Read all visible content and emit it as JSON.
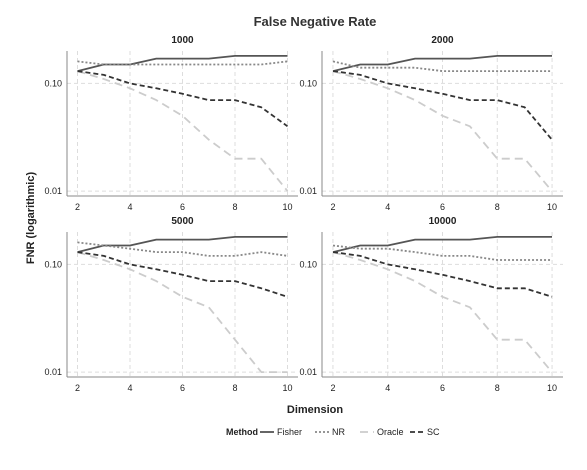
{
  "chart_data": {
    "type": "line",
    "title": "False Negative Rate",
    "xlabel": "Dimension",
    "ylabel": "FNR (logarithmic)",
    "x": [
      2,
      3,
      4,
      5,
      6,
      7,
      8,
      9,
      10
    ],
    "x_ticks": [
      2,
      4,
      6,
      8,
      10
    ],
    "y_scale": "log",
    "y_ticks": [
      0.01,
      0.1
    ],
    "y_tick_labels": [
      "0.01",
      "0.10"
    ],
    "ylim": [
      0.009,
      0.2
    ],
    "xlim": [
      1.6,
      10.4
    ],
    "grid": true,
    "legend": {
      "title": "Method",
      "position": "bottom",
      "entries": [
        "Fisher",
        "NR",
        "Oracle",
        "SC"
      ]
    },
    "series_styles": {
      "Fisher": {
        "color": "#555555",
        "dash": "solid"
      },
      "NR": {
        "color": "#888888",
        "dash": "dotted"
      },
      "Oracle": {
        "color": "#cccccc",
        "dash": "longdash"
      },
      "SC": {
        "color": "#333333",
        "dash": "dashed"
      }
    },
    "panels": [
      {
        "label": "1000",
        "series": [
          {
            "name": "Fisher",
            "values": [
              0.13,
              0.15,
              0.15,
              0.17,
              0.17,
              0.17,
              0.18,
              0.18,
              0.18
            ]
          },
          {
            "name": "NR",
            "values": [
              0.16,
              0.15,
              0.15,
              0.15,
              0.15,
              0.15,
              0.15,
              0.15,
              0.16
            ]
          },
          {
            "name": "Oracle",
            "values": [
              0.13,
              0.11,
              0.09,
              0.07,
              0.05,
              0.03,
              0.02,
              0.02,
              0.01
            ]
          },
          {
            "name": "SC",
            "values": [
              0.13,
              0.12,
              0.1,
              0.09,
              0.08,
              0.07,
              0.07,
              0.06,
              0.04
            ]
          }
        ]
      },
      {
        "label": "2000",
        "series": [
          {
            "name": "Fisher",
            "values": [
              0.13,
              0.15,
              0.15,
              0.17,
              0.17,
              0.17,
              0.18,
              0.18,
              0.18
            ]
          },
          {
            "name": "NR",
            "values": [
              0.16,
              0.14,
              0.14,
              0.14,
              0.13,
              0.13,
              0.13,
              0.13,
              0.13
            ]
          },
          {
            "name": "Oracle",
            "values": [
              0.13,
              0.11,
              0.09,
              0.07,
              0.05,
              0.04,
              0.02,
              0.02,
              0.01
            ]
          },
          {
            "name": "SC",
            "values": [
              0.13,
              0.12,
              0.1,
              0.09,
              0.08,
              0.07,
              0.07,
              0.06,
              0.03
            ]
          }
        ]
      },
      {
        "label": "5000",
        "series": [
          {
            "name": "Fisher",
            "values": [
              0.13,
              0.15,
              0.15,
              0.17,
              0.17,
              0.17,
              0.18,
              0.18,
              0.18
            ]
          },
          {
            "name": "NR",
            "values": [
              0.16,
              0.15,
              0.14,
              0.13,
              0.13,
              0.12,
              0.12,
              0.13,
              0.12
            ]
          },
          {
            "name": "Oracle",
            "values": [
              0.13,
              0.11,
              0.09,
              0.07,
              0.05,
              0.04,
              0.02,
              0.01,
              0.01
            ]
          },
          {
            "name": "SC",
            "values": [
              0.13,
              0.12,
              0.1,
              0.09,
              0.08,
              0.07,
              0.07,
              0.06,
              0.05
            ]
          }
        ]
      },
      {
        "label": "10000",
        "series": [
          {
            "name": "Fisher",
            "values": [
              0.13,
              0.15,
              0.15,
              0.17,
              0.17,
              0.17,
              0.18,
              0.18,
              0.18
            ]
          },
          {
            "name": "NR",
            "values": [
              0.15,
              0.14,
              0.14,
              0.13,
              0.12,
              0.12,
              0.11,
              0.11,
              0.11
            ]
          },
          {
            "name": "Oracle",
            "values": [
              0.13,
              0.11,
              0.09,
              0.07,
              0.05,
              0.04,
              0.02,
              0.02,
              0.01
            ]
          },
          {
            "name": "SC",
            "values": [
              0.13,
              0.12,
              0.1,
              0.09,
              0.08,
              0.07,
              0.06,
              0.06,
              0.05
            ]
          }
        ]
      }
    ]
  }
}
